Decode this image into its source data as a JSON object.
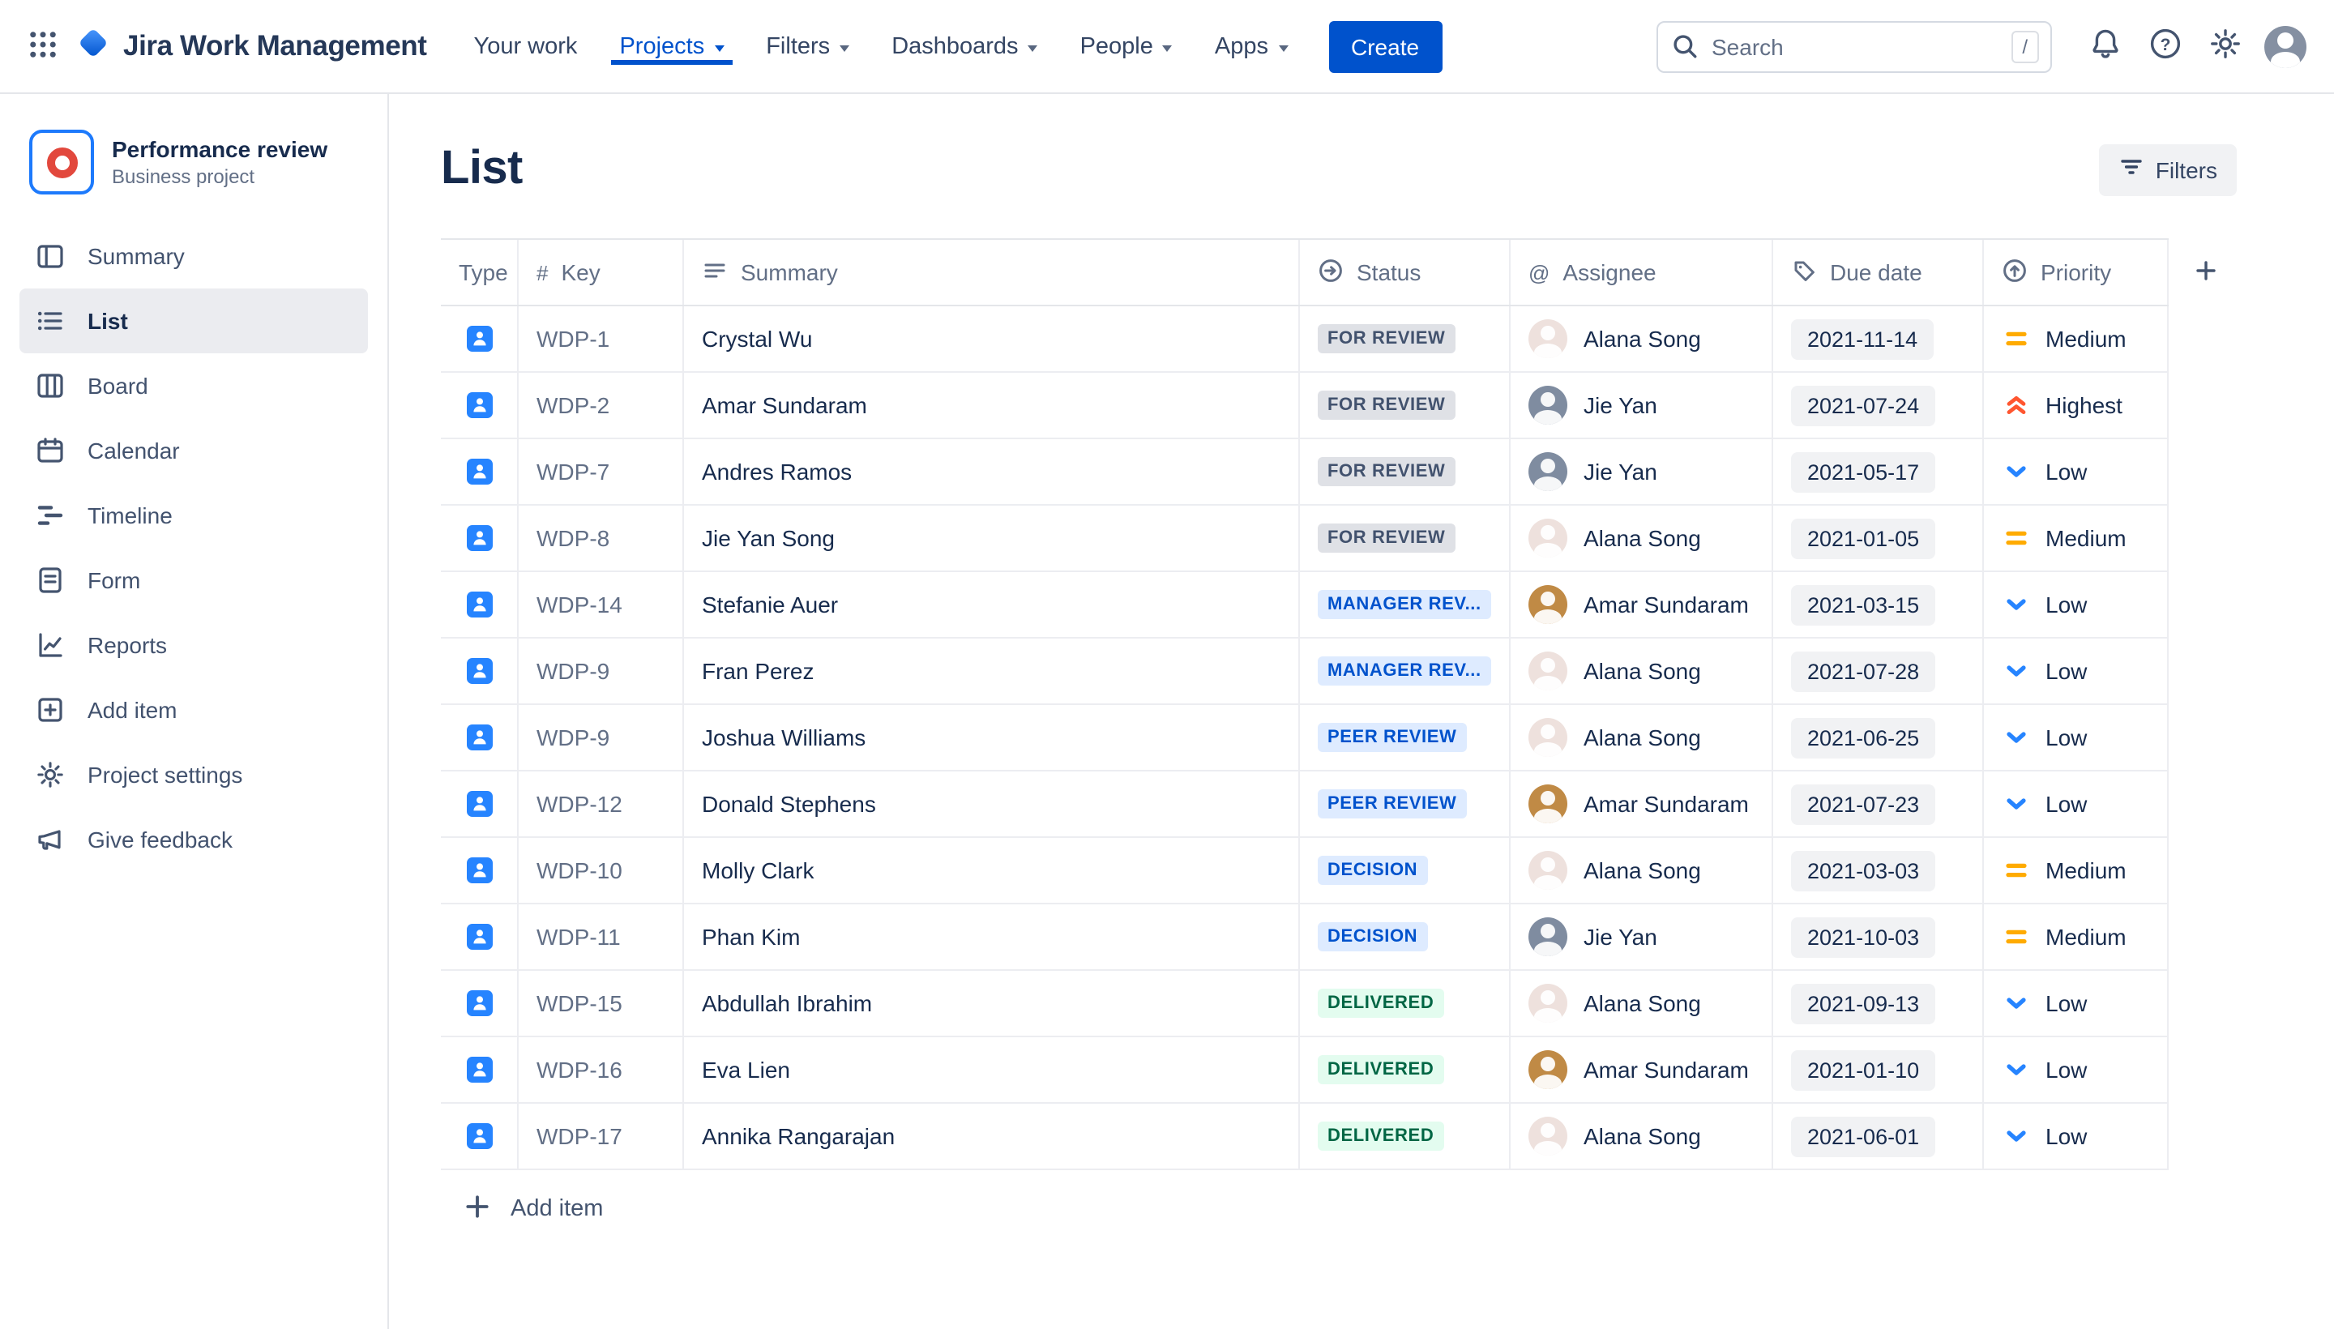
{
  "colors": {
    "accent": "#0052CC",
    "lozenge_neutral_bg": "#DFE1E6",
    "lozenge_neutral_text": "#42526E",
    "lozenge_info_bg": "#DEEBFF",
    "lozenge_info_text": "#0052CC",
    "lozenge_success_bg": "#E3FCEF",
    "lozenge_success_text": "#006644",
    "priority_medium": "#FFAB00",
    "priority_highest": "#FF5630",
    "priority_low": "#2684FF",
    "type_icon_bg": "#2684FF"
  },
  "navbar": {
    "app_name": "Jira Work Management",
    "items": [
      {
        "label": "Your work",
        "dropdown": false,
        "active": false
      },
      {
        "label": "Projects",
        "dropdown": true,
        "active": true
      },
      {
        "label": "Filters",
        "dropdown": true,
        "active": false
      },
      {
        "label": "Dashboards",
        "dropdown": true,
        "active": false
      },
      {
        "label": "People",
        "dropdown": true,
        "active": false
      },
      {
        "label": "Apps",
        "dropdown": true,
        "active": false
      }
    ],
    "create_label": "Create",
    "search": {
      "placeholder": "Search",
      "shortcut_hint": "/"
    }
  },
  "sidebar": {
    "project_name": "Performance review",
    "project_type": "Business project",
    "items": [
      {
        "label": "Summary",
        "icon": "summary-icon",
        "selected": false
      },
      {
        "label": "List",
        "icon": "list-icon",
        "selected": true
      },
      {
        "label": "Board",
        "icon": "board-icon",
        "selected": false
      },
      {
        "label": "Calendar",
        "icon": "calendar-icon",
        "selected": false
      },
      {
        "label": "Timeline",
        "icon": "timeline-icon",
        "selected": false
      },
      {
        "label": "Form",
        "icon": "form-icon",
        "selected": false
      },
      {
        "label": "Reports",
        "icon": "reports-icon",
        "selected": false
      },
      {
        "label": "Add item",
        "icon": "add-item-icon",
        "selected": false
      },
      {
        "label": "Project settings",
        "icon": "settings-icon",
        "selected": false
      },
      {
        "label": "Give feedback",
        "icon": "feedback-icon",
        "selected": false
      }
    ]
  },
  "main": {
    "title": "List",
    "filters_button": "Filters",
    "add_item_label": "Add item"
  },
  "table": {
    "columns": [
      {
        "label": "Type",
        "icon": null
      },
      {
        "label": "Key",
        "icon": "hash-icon"
      },
      {
        "label": "Summary",
        "icon": "text-lines-icon"
      },
      {
        "label": "Status",
        "icon": "progress-icon"
      },
      {
        "label": "Assignee",
        "icon": "mention-icon"
      },
      {
        "label": "Due date",
        "icon": "label-icon"
      },
      {
        "label": "Priority",
        "icon": "priority-circle-icon"
      }
    ],
    "rows": [
      {
        "key": "WDP-1",
        "summary": "Crystal Wu",
        "status": "FOR REVIEW",
        "status_kind": "neutral",
        "assignee": "Alana Song",
        "due_date": "2021-11-14",
        "priority": "Medium",
        "priority_kind": "medium"
      },
      {
        "key": "WDP-2",
        "summary": "Amar Sundaram",
        "status": "FOR REVIEW",
        "status_kind": "neutral",
        "assignee": "Jie Yan",
        "due_date": "2021-07-24",
        "priority": "Highest",
        "priority_kind": "highest"
      },
      {
        "key": "WDP-7",
        "summary": "Andres Ramos",
        "status": "FOR REVIEW",
        "status_kind": "neutral",
        "assignee": "Jie Yan",
        "due_date": "2021-05-17",
        "priority": "Low",
        "priority_kind": "low"
      },
      {
        "key": "WDP-8",
        "summary": "Jie Yan Song",
        "status": "FOR REVIEW",
        "status_kind": "neutral",
        "assignee": "Alana Song",
        "due_date": "2021-01-05",
        "priority": "Medium",
        "priority_kind": "medium"
      },
      {
        "key": "WDP-14",
        "summary": "Stefanie Auer",
        "status": "MANAGER REV...",
        "status_kind": "info",
        "assignee": "Amar Sundaram",
        "due_date": "2021-03-15",
        "priority": "Low",
        "priority_kind": "low"
      },
      {
        "key": "WDP-9",
        "summary": "Fran Perez",
        "status": "MANAGER REV...",
        "status_kind": "info",
        "assignee": "Alana Song",
        "due_date": "2021-07-28",
        "priority": "Low",
        "priority_kind": "low"
      },
      {
        "key": "WDP-9",
        "summary": "Joshua Williams",
        "status": "PEER REVIEW",
        "status_kind": "info",
        "assignee": "Alana Song",
        "due_date": "2021-06-25",
        "priority": "Low",
        "priority_kind": "low"
      },
      {
        "key": "WDP-12",
        "summary": "Donald Stephens",
        "status": "PEER REVIEW",
        "status_kind": "info",
        "assignee": "Amar Sundaram",
        "due_date": "2021-07-23",
        "priority": "Low",
        "priority_kind": "low"
      },
      {
        "key": "WDP-10",
        "summary": "Molly Clark",
        "status": "DECISION",
        "status_kind": "info",
        "assignee": "Alana Song",
        "due_date": "2021-03-03",
        "priority": "Medium",
        "priority_kind": "medium"
      },
      {
        "key": "WDP-11",
        "summary": "Phan Kim",
        "status": "DECISION",
        "status_kind": "info",
        "assignee": "Jie Yan",
        "due_date": "2021-10-03",
        "priority": "Medium",
        "priority_kind": "medium"
      },
      {
        "key": "WDP-15",
        "summary": "Abdullah Ibrahim",
        "status": "DELIVERED",
        "status_kind": "success",
        "assignee": "Alana Song",
        "due_date": "2021-09-13",
        "priority": "Low",
        "priority_kind": "low"
      },
      {
        "key": "WDP-16",
        "summary": "Eva Lien",
        "status": "DELIVERED",
        "status_kind": "success",
        "assignee": "Amar Sundaram",
        "due_date": "2021-01-10",
        "priority": "Low",
        "priority_kind": "low"
      },
      {
        "key": "WDP-17",
        "summary": "Annika Rangarajan",
        "status": "DELIVERED",
        "status_kind": "success",
        "assignee": "Alana Song",
        "due_date": "2021-06-01",
        "priority": "Low",
        "priority_kind": "low"
      }
    ]
  },
  "people": {
    "Alana Song": {
      "color": "#A8655032"
    },
    "Jie Yan": {
      "color": "#7F8CA0"
    },
    "Amar Sundaram": {
      "color": "#C08A45"
    }
  }
}
